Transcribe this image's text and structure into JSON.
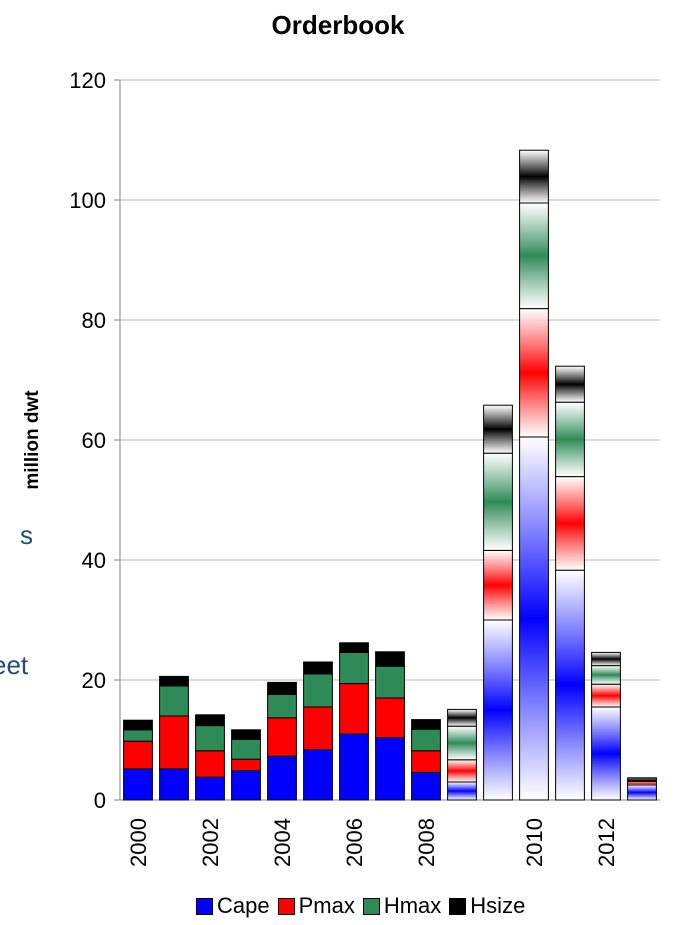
{
  "background_fragments": [
    "s",
    "eet"
  ],
  "chart_data": {
    "type": "bar",
    "stacked": true,
    "title": "Orderbook",
    "ylabel": "million dwt",
    "xlabel": "",
    "ylim": [
      0,
      120
    ],
    "yticks": [
      0,
      20,
      40,
      60,
      80,
      100,
      120
    ],
    "xtick_labels": [
      "2000",
      "2002",
      "2004",
      "2006",
      "2008",
      "2010",
      "2012"
    ],
    "categories": [
      "2000",
      "2001",
      "2002",
      "2003",
      "2004",
      "2005",
      "2006",
      "2007",
      "2008",
      "2008",
      "2009",
      "2010",
      "2011",
      "2012",
      "2013"
    ],
    "series": [
      {
        "name": "Cape",
        "color": "#0000ff",
        "values": [
          5.2,
          5.2,
          3.8,
          4.9,
          7.3,
          8.4,
          11.0,
          10.4,
          4.6,
          3.0,
          30.0,
          60.5,
          38.3,
          15.5,
          2.5
        ]
      },
      {
        "name": "Pmax",
        "color": "#ff0000",
        "values": [
          4.6,
          8.8,
          4.4,
          1.9,
          6.4,
          7.1,
          8.4,
          6.6,
          3.6,
          3.7,
          11.6,
          21.4,
          15.6,
          3.8,
          0.6
        ]
      },
      {
        "name": "Hmax",
        "color": "#2e8b57",
        "values": [
          1.9,
          5.0,
          4.2,
          3.3,
          3.9,
          5.5,
          5.2,
          5.3,
          3.6,
          5.6,
          16.2,
          17.6,
          12.4,
          3.1,
          0.2
        ]
      },
      {
        "name": "Hsize",
        "color": "#000000",
        "values": [
          1.6,
          1.6,
          1.8,
          1.6,
          2.0,
          2.0,
          1.6,
          2.4,
          1.6,
          2.8,
          8.0,
          8.8,
          6.0,
          2.2,
          0.4
        ]
      }
    ],
    "faded_bars": [
      9,
      10,
      11,
      12,
      13,
      14
    ],
    "legend_position": "bottom",
    "grid": true
  }
}
